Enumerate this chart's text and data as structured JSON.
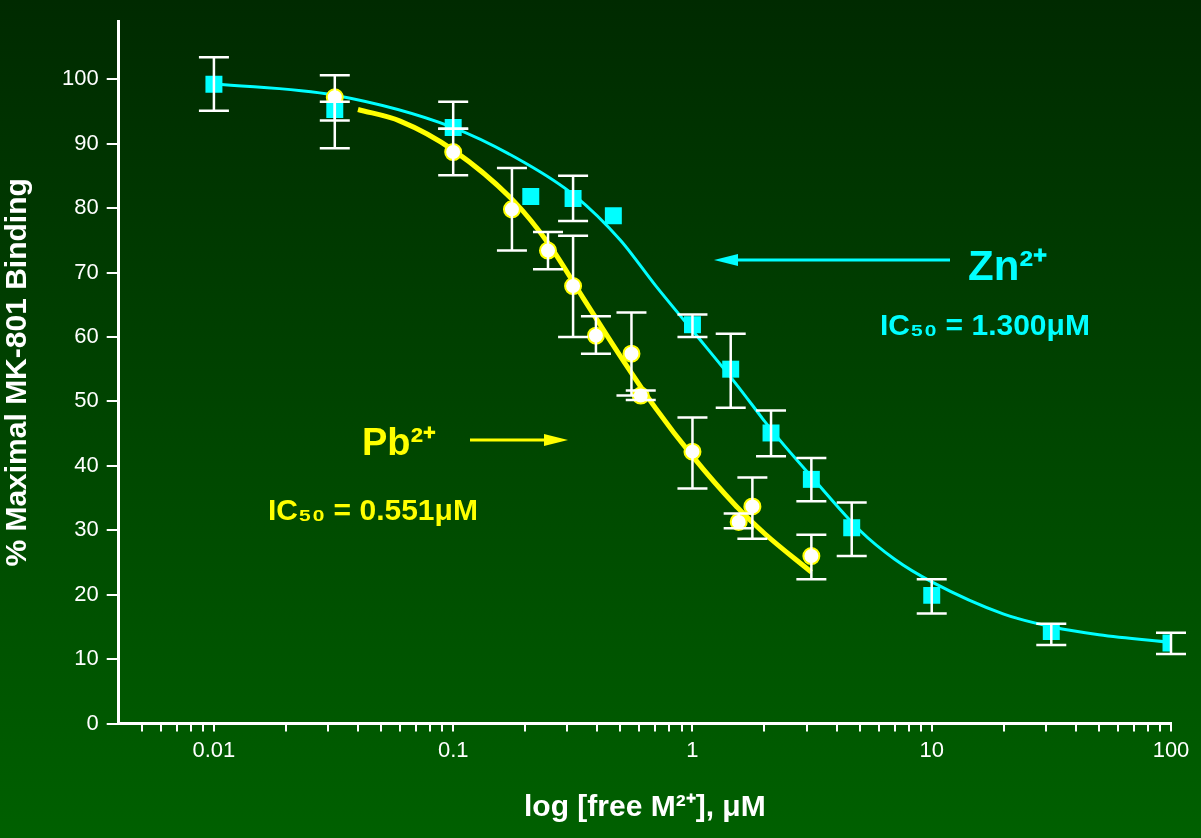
{
  "chart_data": {
    "type": "scatter",
    "xlabel": "log [free M²⁺], μM",
    "ylabel": "% Maximal MK-801 Binding",
    "log": "x",
    "grid": false,
    "xlim": [
      0.004,
      100
    ],
    "ylim": [
      0,
      109
    ],
    "xticks": [
      {
        "value": 0.005,
        "label": null
      },
      {
        "value": 0.006,
        "label": null
      },
      {
        "value": 0.007,
        "label": null
      },
      {
        "value": 0.008,
        "label": null
      },
      {
        "value": 0.009,
        "label": null
      },
      {
        "value": 0.01,
        "label": "0.01"
      },
      {
        "value": 0.02,
        "label": null
      },
      {
        "value": 0.03,
        "label": null
      },
      {
        "value": 0.04,
        "label": null
      },
      {
        "value": 0.05,
        "label": null
      },
      {
        "value": 0.06,
        "label": null
      },
      {
        "value": 0.07,
        "label": null
      },
      {
        "value": 0.08,
        "label": null
      },
      {
        "value": 0.09,
        "label": null
      },
      {
        "value": 0.1,
        "label": "0.1"
      },
      {
        "value": 0.2,
        "label": null
      },
      {
        "value": 0.3,
        "label": null
      },
      {
        "value": 0.4,
        "label": null
      },
      {
        "value": 0.5,
        "label": null
      },
      {
        "value": 0.6,
        "label": null
      },
      {
        "value": 0.7,
        "label": null
      },
      {
        "value": 0.8,
        "label": null
      },
      {
        "value": 0.9,
        "label": null
      },
      1,
      {
        "value": 2,
        "label": null
      },
      {
        "value": 3,
        "label": null
      },
      {
        "value": 4,
        "label": null
      },
      {
        "value": 5,
        "label": null
      },
      {
        "value": 6,
        "label": null
      },
      {
        "value": 7,
        "label": null
      },
      {
        "value": 8,
        "label": null
      },
      {
        "value": 9,
        "label": null
      },
      10,
      {
        "value": 20,
        "label": null
      },
      {
        "value": 30,
        "label": null
      },
      {
        "value": 40,
        "label": null
      },
      {
        "value": 50,
        "label": null
      },
      {
        "value": 60,
        "label": null
      },
      {
        "value": 70,
        "label": null
      },
      {
        "value": 80,
        "label": null
      },
      {
        "value": 90,
        "label": null
      },
      100
    ],
    "yticks": [
      0,
      10,
      20,
      30,
      40,
      50,
      60,
      70,
      80,
      90,
      100
    ],
    "series": [
      {
        "type": "line",
        "color": "#00ffff",
        "marker": "none",
        "x": [
          0.01,
          0.032,
          0.1,
          0.2,
          0.32,
          0.5,
          0.7,
          1,
          1.5,
          2.2,
          3.2,
          5,
          7,
          10,
          20,
          32,
          50,
          100
        ],
        "values": [
          99.3,
          97.5,
          92.5,
          87,
          82,
          75,
          68,
          61,
          53,
          45,
          38,
          30,
          25.5,
          22,
          17,
          15,
          13.8,
          12.6
        ]
      },
      {
        "type": "line",
        "color": "#ffff00",
        "marker": "none",
        "x": [
          0.04,
          0.06,
          0.1,
          0.18,
          0.25,
          0.35,
          0.5,
          0.7,
          1,
          1.5,
          2,
          3.14
        ],
        "values": [
          95.3,
          93.5,
          89,
          81,
          74.5,
          66,
          57,
          49,
          41.5,
          34,
          29.5,
          23.5
        ]
      },
      {
        "name": "Zn²⁺",
        "color": "#00ffff",
        "marker": "square",
        "x": [
          0.01,
          0.032,
          0.1,
          0.211,
          0.317,
          0.467,
          1,
          1.445,
          2.13,
          3.14,
          4.63,
          10,
          31.6,
          100
        ],
        "values": [
          99.2,
          95.3,
          92.5,
          81.8,
          81.5,
          78.8,
          61.9,
          55,
          45.1,
          37.9,
          30.4,
          19.9,
          14.3,
          12.5
        ],
        "errors": [
          [
            95.1,
            103.4
          ],
          [
            93.6,
            96.5
          ],
          [
            92.3,
            96.5
          ],
          null,
          [
            78,
            85
          ],
          null,
          [
            60,
            63.5
          ],
          [
            49,
            60.5
          ],
          [
            41.5,
            48.6
          ],
          [
            34.5,
            41.2
          ],
          [
            26,
            34.3
          ],
          [
            17.1,
            22.4
          ],
          [
            12.2,
            15.5
          ],
          [
            10.8,
            14.1
          ]
        ]
      },
      {
        "name": "Pb²⁺",
        "color": "#ffff00",
        "marker": "circle",
        "x": [
          0.032,
          0.1,
          0.176,
          0.249,
          0.317,
          0.395,
          0.556,
          0.608,
          1,
          1.56,
          1.78,
          3.14
        ],
        "values": [
          97.2,
          88.7,
          79.8,
          73.4,
          67.9,
          60.2,
          57.4,
          50.9,
          42.2,
          31.3,
          33.7,
          26
        ],
        "errors": [
          [
            89.3,
            100.6
          ],
          [
            85.1,
            92.3
          ],
          [
            73.4,
            86.2
          ],
          [
            70.5,
            76.3
          ],
          [
            60,
            75.7
          ],
          [
            57.4,
            63.2
          ],
          [
            50.9,
            63.8
          ],
          [
            50.2,
            51.7
          ],
          [
            36.5,
            47.5
          ],
          [
            30.3,
            32.6
          ],
          [
            28.7,
            38.2
          ],
          [
            22.4,
            29.3
          ]
        ]
      }
    ],
    "annotations": [
      "IC₅₀ = 1.300μM",
      "IC₅₀ = 0.551μM"
    ]
  }
}
